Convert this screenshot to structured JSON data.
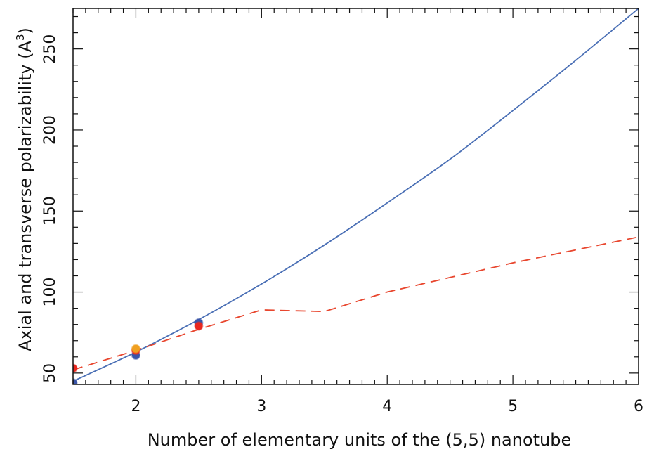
{
  "chart_data": {
    "type": "line",
    "title": "",
    "xlabel": "Number of elementary units of the (5,5) nanotube",
    "ylabel_main": "Axial and transverse polarizability (A",
    "ylabel_sup": "3",
    "ylabel_close": ")",
    "xlim": [
      1.5,
      6
    ],
    "ylim": [
      43,
      275
    ],
    "x_ticks": [
      2,
      3,
      4,
      5,
      6
    ],
    "y_ticks": [
      50,
      100,
      150,
      200,
      250
    ],
    "grid": false,
    "legend": "none",
    "series": [
      {
        "style": "solid",
        "color": "#4a6fb5",
        "x": [
          1.5,
          2,
          2.5,
          3,
          3.5,
          4,
          4.5,
          5,
          5.5,
          6
        ],
        "y": [
          45,
          63,
          83,
          105,
          129,
          155,
          182,
          212,
          243,
          275
        ]
      },
      {
        "style": "dashed",
        "color": "#e8462e",
        "x": [
          1.5,
          2,
          2.5,
          3,
          3.5,
          4,
          4.5,
          5,
          5.5,
          6
        ],
        "y": [
          52,
          64,
          77,
          89,
          88,
          100,
          109,
          118,
          126,
          134
        ]
      }
    ],
    "points": [
      {
        "x": 1.5,
        "y": 44,
        "color": "#3a55a8"
      },
      {
        "x": 1.5,
        "y": 53,
        "color": "#e8271f"
      },
      {
        "x": 2,
        "y": 61,
        "color": "#3a55a8"
      },
      {
        "x": 2,
        "y": 64,
        "color": "#e8271f"
      },
      {
        "x": 2,
        "y": 65,
        "color": "#f0a020"
      },
      {
        "x": 2.5,
        "y": 81,
        "color": "#3a55a8"
      },
      {
        "x": 2.5,
        "y": 79,
        "color": "#e8271f"
      }
    ]
  }
}
